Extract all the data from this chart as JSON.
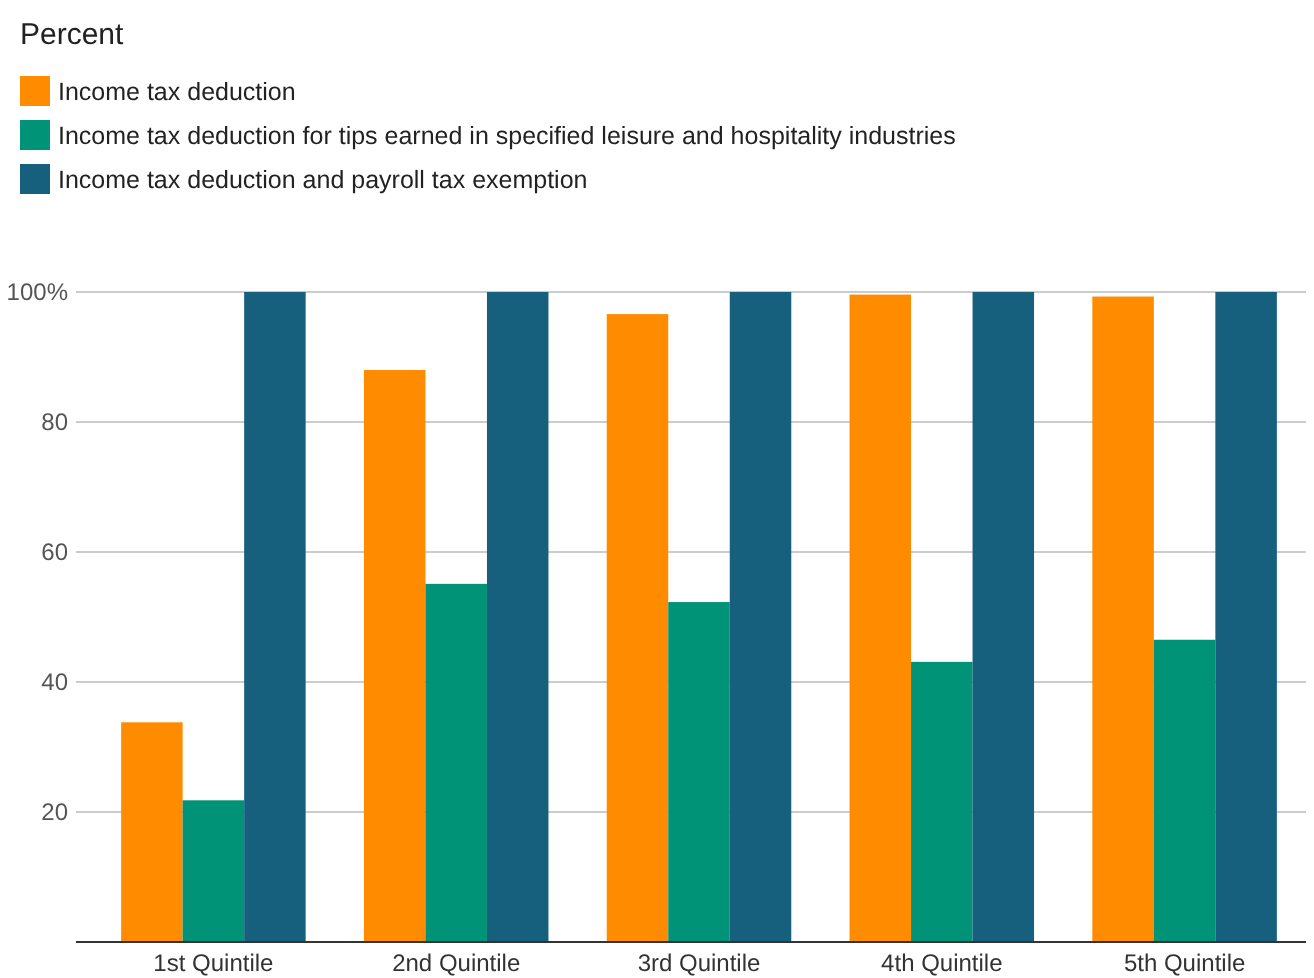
{
  "chart_data": {
    "type": "bar",
    "title": "Percent",
    "categories": [
      "1st Quintile",
      "2nd Quintile",
      "3rd Quintile",
      "4th Quintile",
      "5th Quintile"
    ],
    "series": [
      {
        "name": "Income tax deduction",
        "color": "#ff8c00",
        "values": [
          33.8,
          88,
          96.6,
          99.6,
          99.3
        ]
      },
      {
        "name": "Income tax deduction for tips earned in specified leisure and hospitality industries",
        "color": "#009377",
        "values": [
          21.8,
          55.1,
          52.3,
          43.1,
          46.5
        ]
      },
      {
        "name": "Income tax deduction and payroll tax exemption",
        "color": "#17607d",
        "values": [
          100,
          100,
          100,
          100,
          100
        ]
      }
    ],
    "ylim": [
      0,
      100
    ],
    "yticks": [
      {
        "value": 0,
        "label": null
      },
      20,
      40,
      60,
      80,
      {
        "value": 100,
        "label": "100%"
      }
    ],
    "grid": "y",
    "legend": "top left"
  }
}
